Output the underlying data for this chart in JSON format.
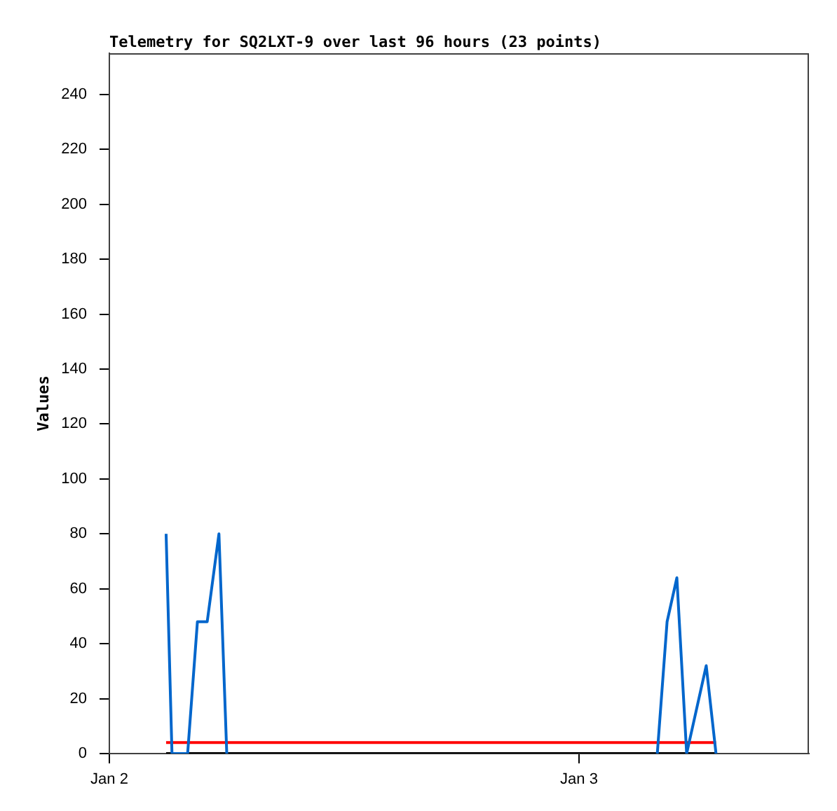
{
  "chart_data": {
    "type": "line",
    "title": "Telemetry for SQ2LXT-9 over last 96 hours (23 points)",
    "ylabel": "Values",
    "xlim": [
      "--01-02T00:00",
      "--01-03T11:45"
    ],
    "xticks": [
      {
        "value": "--01-02",
        "label": "Jan 2"
      },
      {
        "value": "--01-03",
        "label": "Jan 3"
      }
    ],
    "ylim": [
      0,
      255
    ],
    "yticks": [
      0,
      20,
      40,
      60,
      80,
      100,
      120,
      140,
      160,
      180,
      200,
      220,
      240
    ],
    "series": [
      {
        "color": "#0066cc",
        "x": [
          "--01-02T02:54",
          "--01-02T03:12",
          "--01-02T04:00",
          "--01-02T04:30",
          "--01-02T05:00",
          "--01-02T05:36",
          "--01-02T06:00",
          "--01-02T17:00",
          "--01-03T04:00",
          "--01-03T04:30",
          "--01-03T05:00",
          "--01-03T05:30",
          "--01-03T06:30",
          "--01-03T07:00"
        ],
        "values": [
          80,
          0,
          0,
          48,
          48,
          80,
          0,
          null,
          0,
          48,
          64,
          0,
          32,
          0
        ]
      },
      {
        "color": "#ff0000",
        "x": [
          "--01-02T02:54",
          "--01-03T07:00"
        ],
        "values": [
          4,
          4
        ]
      },
      {
        "color": "#000000",
        "x": [
          "--01-02T02:54",
          "--01-03T07:00"
        ],
        "values": [
          0,
          0
        ]
      }
    ]
  }
}
